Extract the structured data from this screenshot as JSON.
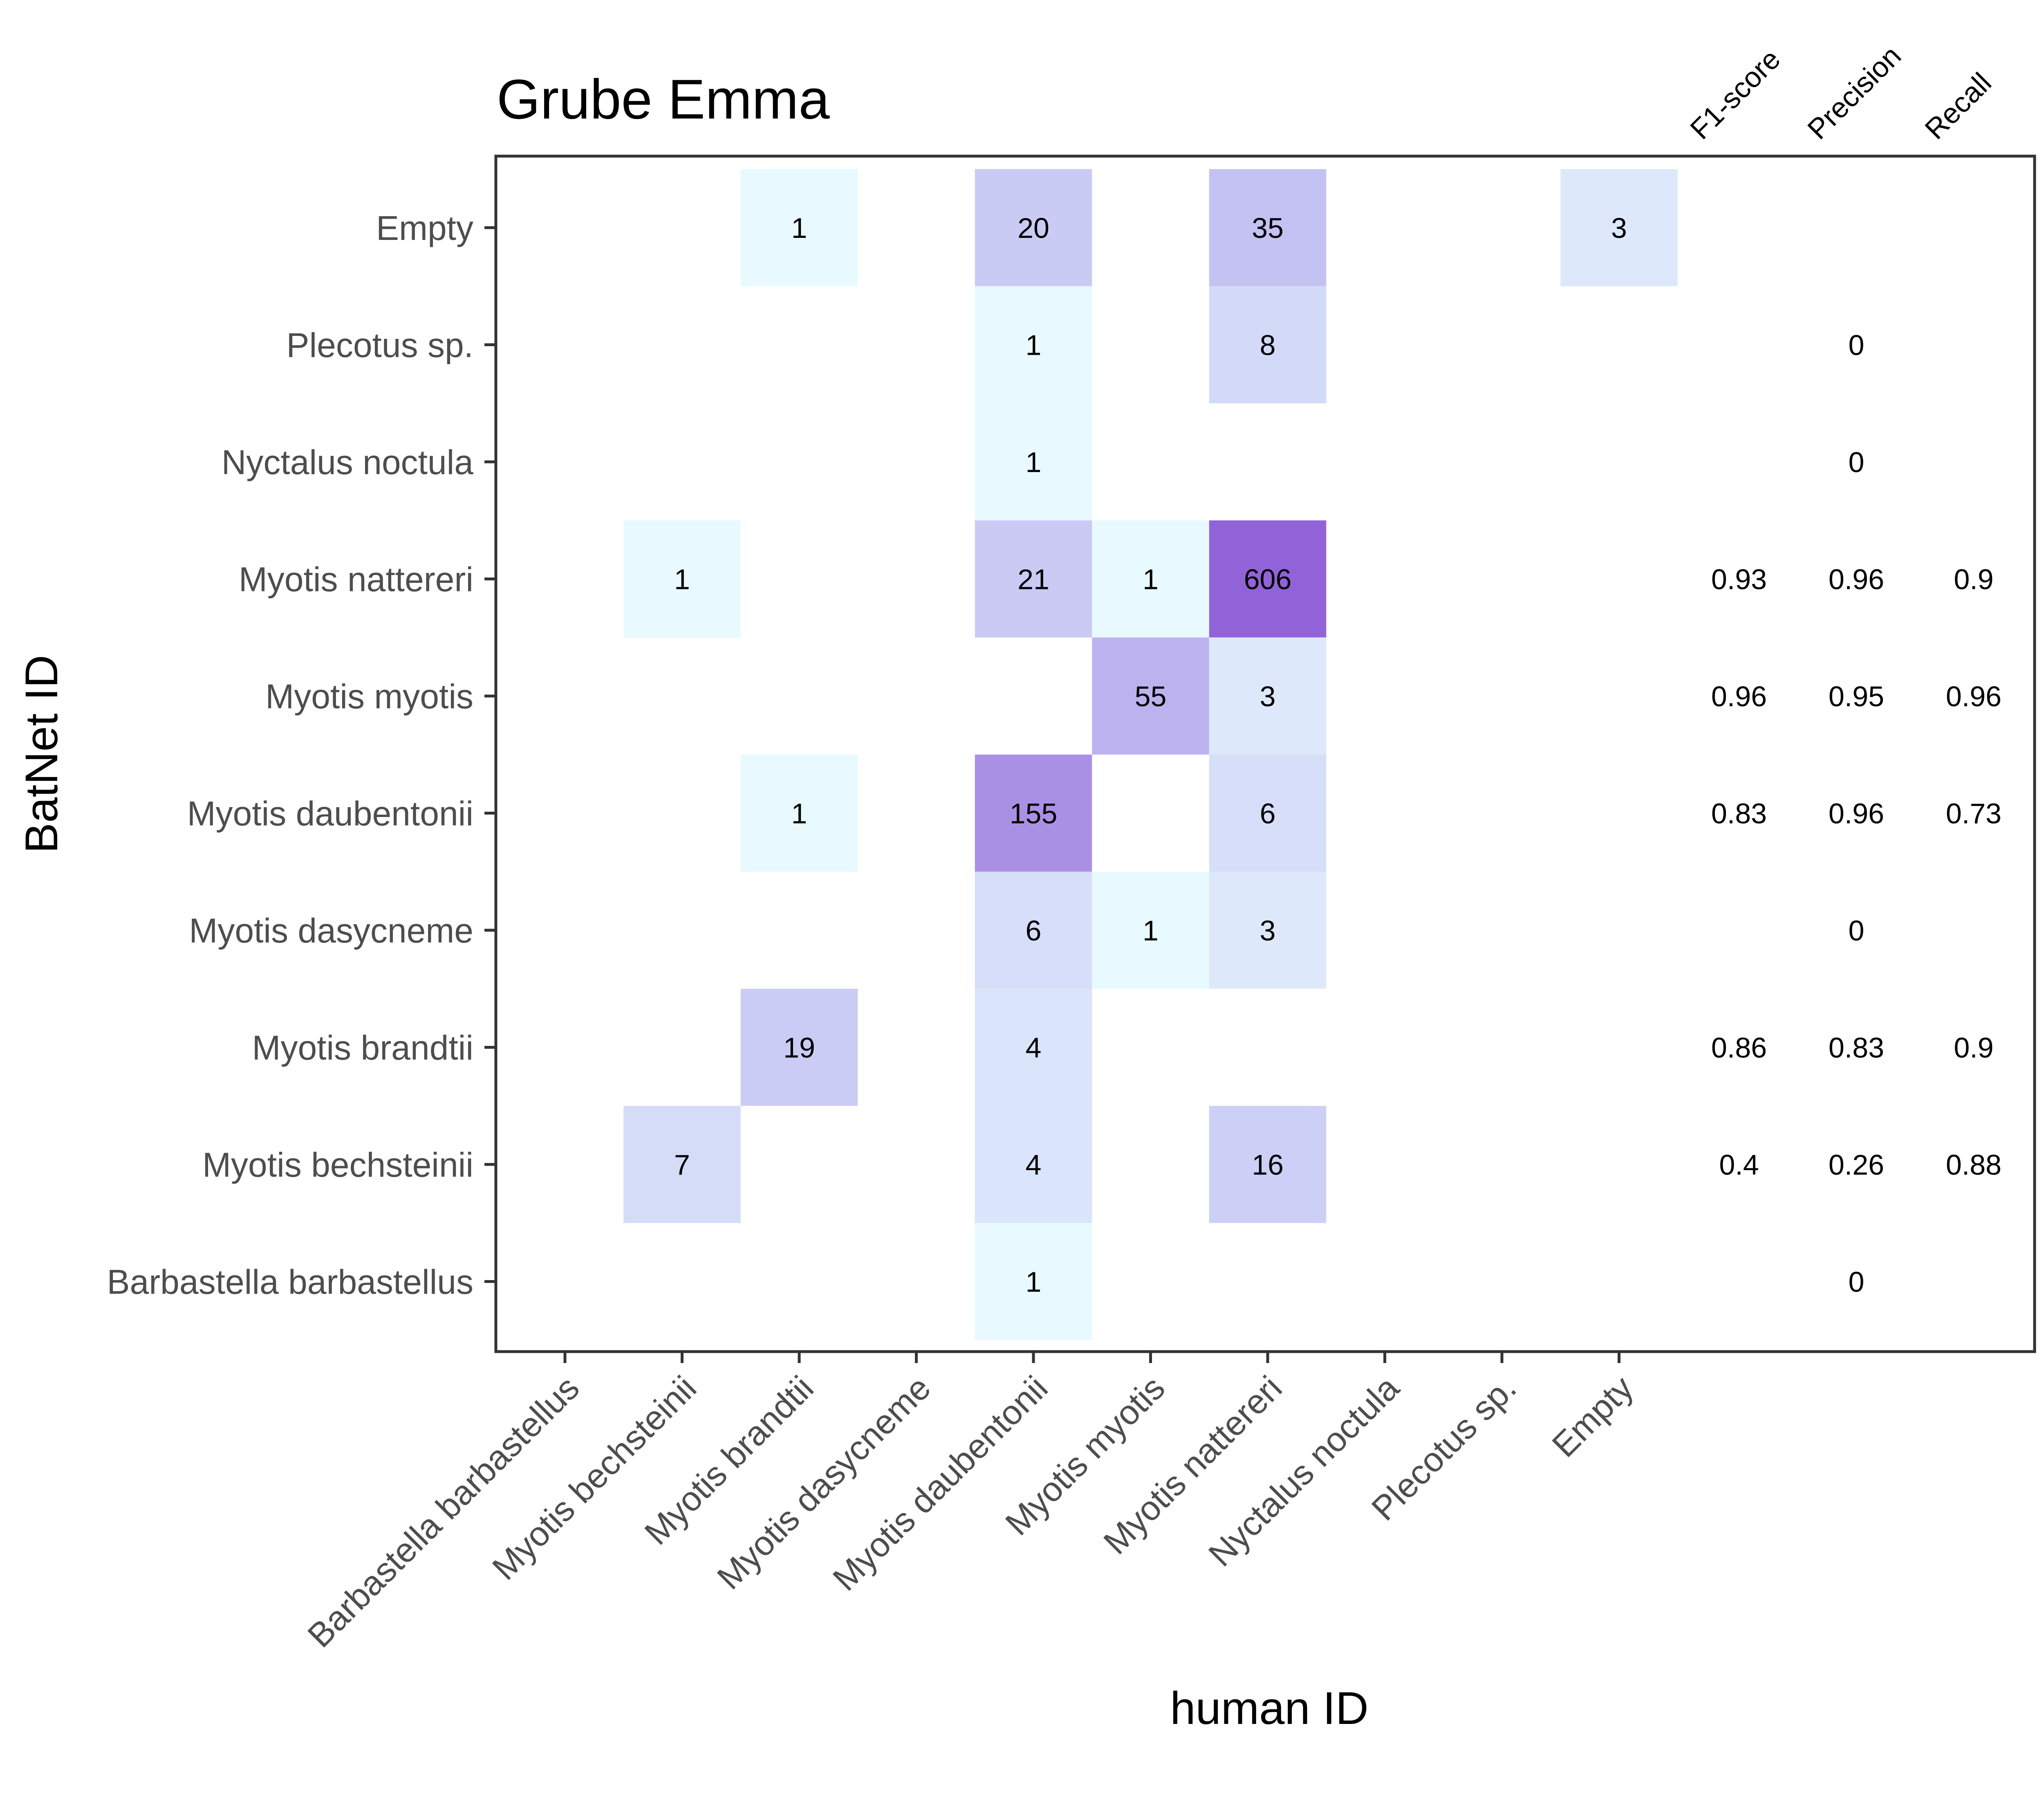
{
  "chart_data": {
    "type": "heatmap",
    "title": "Grube Emma",
    "xlabel": "human ID",
    "ylabel": "BatNet ID",
    "x_categories": [
      "Barbastella barbastellus",
      "Myotis bechsteinii",
      "Myotis brandtii",
      "Myotis dasycneme",
      "Myotis daubentonii",
      "Myotis myotis",
      "Myotis nattereri",
      "Nyctalus noctula",
      "Plecotus sp.",
      "Empty"
    ],
    "y_categories": [
      "Empty",
      "Plecotus sp.",
      "Nyctalus noctula",
      "Myotis nattereri",
      "Myotis myotis",
      "Myotis daubentonii",
      "Myotis dasycneme",
      "Myotis brandtii",
      "Myotis bechsteinii",
      "Barbastella barbastellus"
    ],
    "cells": [
      {
        "x": "Myotis brandtii",
        "y": "Empty",
        "value": 1
      },
      {
        "x": "Myotis daubentonii",
        "y": "Empty",
        "value": 20
      },
      {
        "x": "Myotis nattereri",
        "y": "Empty",
        "value": 35
      },
      {
        "x": "Empty",
        "y": "Empty",
        "value": 3
      },
      {
        "x": "Myotis daubentonii",
        "y": "Plecotus sp.",
        "value": 1
      },
      {
        "x": "Myotis nattereri",
        "y": "Plecotus sp.",
        "value": 8
      },
      {
        "x": "Myotis daubentonii",
        "y": "Nyctalus noctula",
        "value": 1
      },
      {
        "x": "Myotis bechsteinii",
        "y": "Myotis nattereri",
        "value": 1
      },
      {
        "x": "Myotis daubentonii",
        "y": "Myotis nattereri",
        "value": 21
      },
      {
        "x": "Myotis myotis",
        "y": "Myotis nattereri",
        "value": 1
      },
      {
        "x": "Myotis nattereri",
        "y": "Myotis nattereri",
        "value": 606
      },
      {
        "x": "Myotis myotis",
        "y": "Myotis myotis",
        "value": 55
      },
      {
        "x": "Myotis nattereri",
        "y": "Myotis myotis",
        "value": 3
      },
      {
        "x": "Myotis brandtii",
        "y": "Myotis daubentonii",
        "value": 1
      },
      {
        "x": "Myotis daubentonii",
        "y": "Myotis daubentonii",
        "value": 155
      },
      {
        "x": "Myotis nattereri",
        "y": "Myotis daubentonii",
        "value": 6
      },
      {
        "x": "Myotis daubentonii",
        "y": "Myotis dasycneme",
        "value": 6
      },
      {
        "x": "Myotis myotis",
        "y": "Myotis dasycneme",
        "value": 1
      },
      {
        "x": "Myotis nattereri",
        "y": "Myotis dasycneme",
        "value": 3
      },
      {
        "x": "Myotis brandtii",
        "y": "Myotis brandtii",
        "value": 19
      },
      {
        "x": "Myotis daubentonii",
        "y": "Myotis brandtii",
        "value": 4
      },
      {
        "x": "Myotis bechsteinii",
        "y": "Myotis bechsteinii",
        "value": 7
      },
      {
        "x": "Myotis daubentonii",
        "y": "Myotis bechsteinii",
        "value": 4
      },
      {
        "x": "Myotis nattereri",
        "y": "Myotis bechsteinii",
        "value": 16
      },
      {
        "x": "Myotis daubentonii",
        "y": "Barbastella barbastellus",
        "value": 1
      }
    ],
    "metric_headers": [
      "F1-score",
      "Precision",
      "Recall"
    ],
    "metrics": [
      {
        "y": "Plecotus sp.",
        "values": [
          "",
          "0",
          ""
        ]
      },
      {
        "y": "Nyctalus noctula",
        "values": [
          "",
          "0",
          ""
        ]
      },
      {
        "y": "Myotis nattereri",
        "values": [
          "0.93",
          "0.96",
          "0.9"
        ]
      },
      {
        "y": "Myotis myotis",
        "values": [
          "0.96",
          "0.95",
          "0.96"
        ]
      },
      {
        "y": "Myotis daubentonii",
        "values": [
          "0.83",
          "0.96",
          "0.73"
        ]
      },
      {
        "y": "Myotis dasycneme",
        "values": [
          "",
          "0",
          ""
        ]
      },
      {
        "y": "Myotis brandtii",
        "values": [
          "0.86",
          "0.83",
          "0.9"
        ]
      },
      {
        "y": "Myotis bechsteinii",
        "values": [
          "0.4",
          "0.26",
          "0.88"
        ]
      },
      {
        "y": "Barbastella barbastellus",
        "values": [
          "",
          "0",
          ""
        ]
      }
    ],
    "color_scale": {
      "low": "#e8faff",
      "mid": "#c5c3f3",
      "high": "#9263d8"
    },
    "grid": false,
    "legend": "none"
  }
}
